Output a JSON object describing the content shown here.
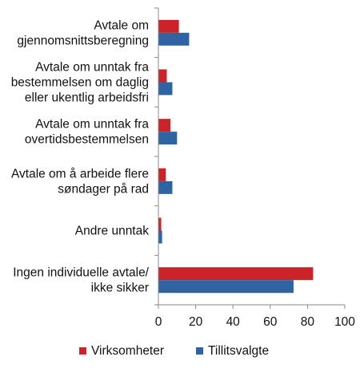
{
  "chart_data": {
    "type": "bar",
    "orientation": "horizontal",
    "title": "",
    "xlabel": "",
    "ylabel": "",
    "categories": [
      [
        "Avtale om",
        "gjennomsnittsberegning"
      ],
      [
        "Avtale om unntak fra",
        "bestemmelsen om daglig",
        "eller ukentlig arbeidsfri"
      ],
      [
        "Avtale om unntak fra",
        "overtidsbestemmelsen"
      ],
      [
        "Avtale om å arbeide flere",
        "søndager på rad"
      ],
      [
        "Andre unntak"
      ],
      [
        "Ingen individuelle avtale/",
        "ikke sikker"
      ]
    ],
    "series": [
      {
        "name": "Virksomheter",
        "color": "#cc2229",
        "values": [
          11,
          4.5,
          6.5,
          4,
          1.5,
          83
        ]
      },
      {
        "name": "Tillitsvalgte",
        "color": "#2f64a3",
        "values": [
          16.5,
          7.5,
          10,
          7.5,
          2,
          72.5
        ]
      }
    ],
    "xlim": [
      0,
      100
    ],
    "xticks": [
      "0",
      "20",
      "40",
      "60",
      "80",
      "100"
    ],
    "xtick_values": [
      0,
      20,
      40,
      60,
      80,
      100
    ],
    "grid": false,
    "legend_position": "bottom"
  }
}
